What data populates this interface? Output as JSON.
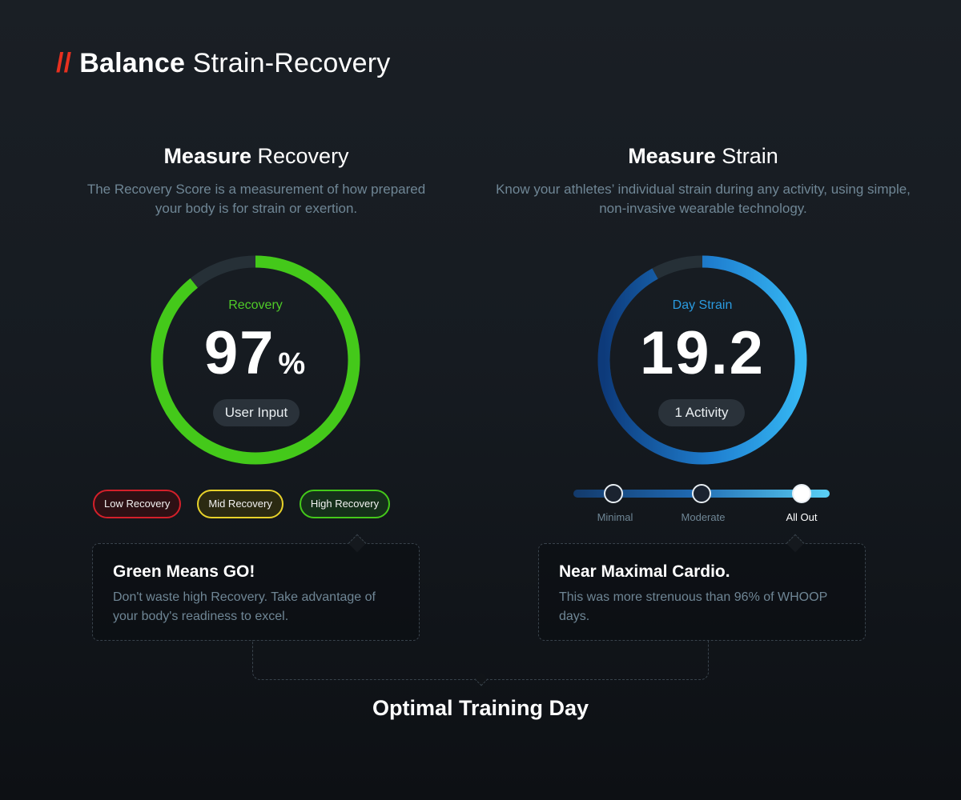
{
  "page": {
    "title_prefix": "//",
    "title_bold": "Balance",
    "title_light": "Strain-Recovery"
  },
  "recovery": {
    "heading_bold": "Measure",
    "heading_light": "Recovery",
    "description": "The Recovery Score is a measurement of how prepared your body is for strain or exertion.",
    "gauge_label": "Recovery",
    "value": "97",
    "unit": "%",
    "percent": 97,
    "pill": "User Input",
    "accent_color": "#44c91a",
    "tags": [
      {
        "label": "Low Recovery",
        "border": "#d4202a",
        "bg": "#2d1014"
      },
      {
        "label": "Mid Recovery",
        "border": "#e7d22a",
        "bg": "#2b2a12"
      },
      {
        "label": "High Recovery",
        "border": "#44c91a",
        "bg": "#15301a"
      }
    ],
    "callout_title": "Green Means GO!",
    "callout_body": "Don't waste high Recovery. Take advantage of your body's readiness to excel."
  },
  "strain": {
    "heading_bold": "Measure",
    "heading_light": "Strain",
    "description": "Know your athletes’ individual strain during any activity, using simple, non-invasive wearable technology.",
    "gauge_label": "Day Strain",
    "value": "19.2",
    "fraction_filled": 0.92,
    "pill": "1 Activity",
    "accent_color": "#2c9be2",
    "levels": [
      {
        "label": "Minimal",
        "active": false
      },
      {
        "label": "Moderate",
        "active": false
      },
      {
        "label": "All Out",
        "active": true
      }
    ],
    "callout_title": "Near Maximal Cardio.",
    "callout_body": "This was more strenuous than 96% of WHOOP days."
  },
  "footer": {
    "title": "Optimal Training Day"
  }
}
